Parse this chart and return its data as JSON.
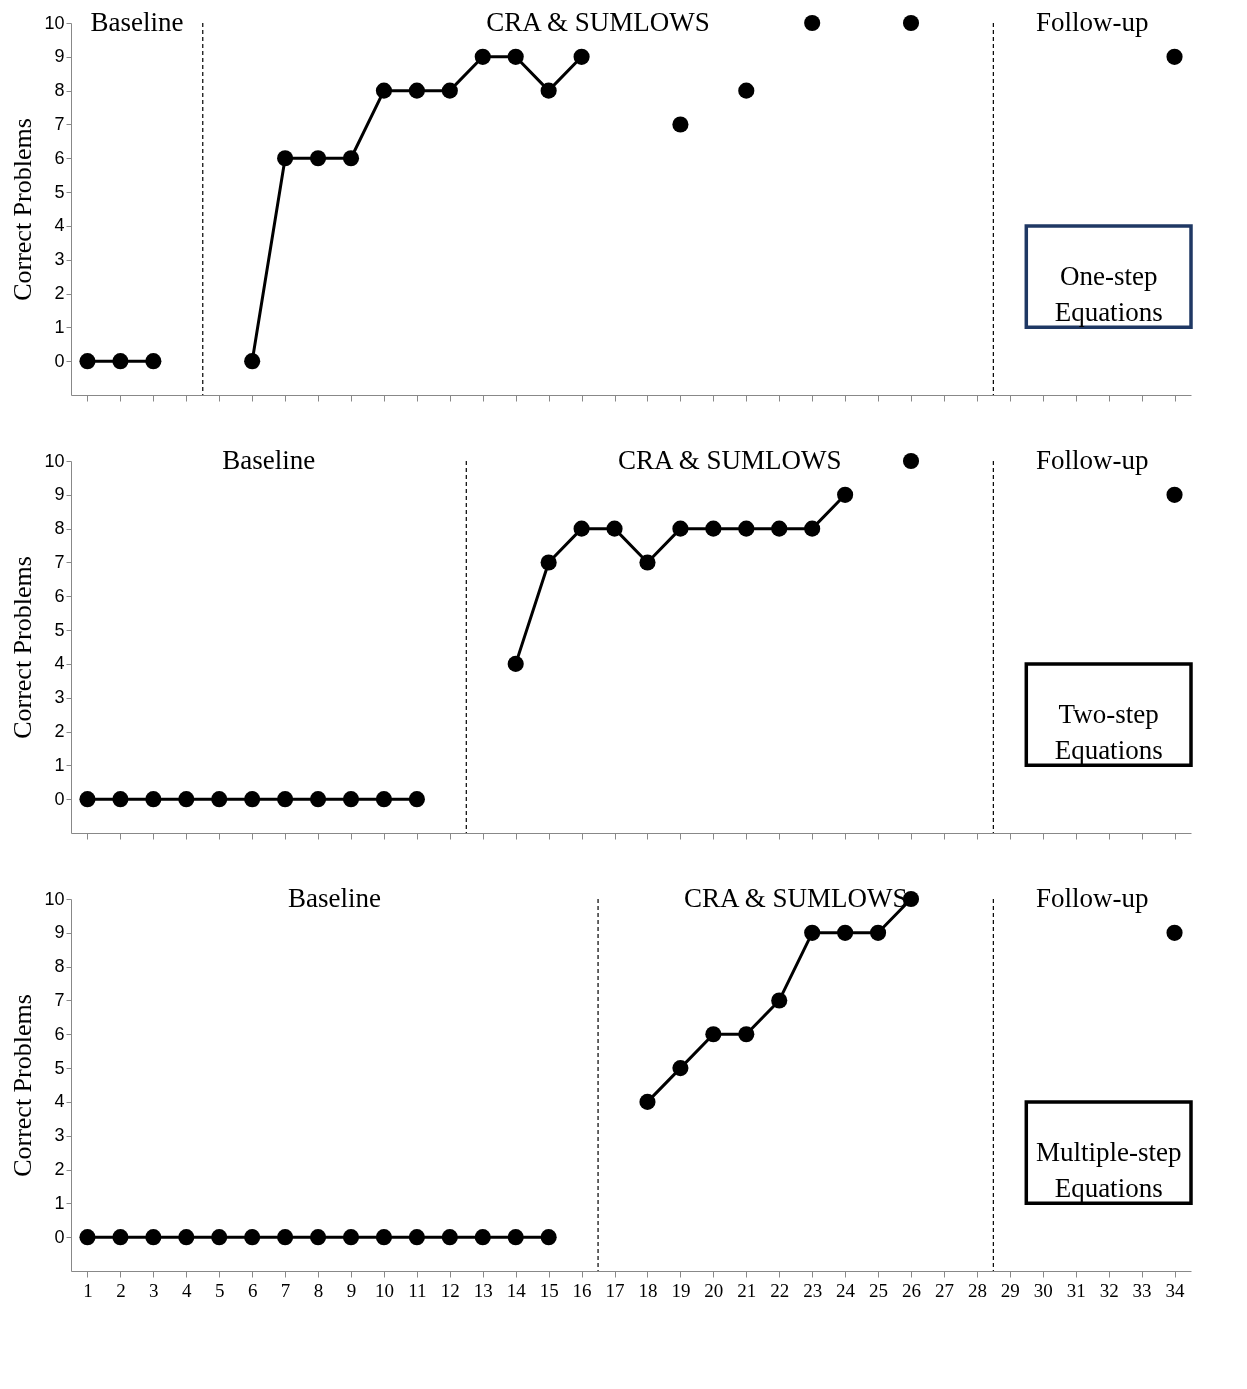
{
  "chart_data": [
    {
      "type": "line",
      "ylabel": "Correct Problems",
      "x": [
        1,
        2,
        3,
        4,
        5,
        6,
        7,
        8,
        9,
        10,
        11,
        12,
        13,
        14,
        15,
        16,
        17,
        18,
        19,
        20,
        21,
        22,
        23,
        24,
        25,
        26,
        27,
        28,
        29,
        30,
        31,
        32,
        33,
        34
      ],
      "series": [
        {
          "color": "#000000",
          "values": [
            0,
            0,
            0,
            null,
            null,
            0,
            6,
            6,
            6,
            8,
            8,
            8,
            9,
            9,
            8,
            9,
            null,
            null,
            7,
            null,
            8,
            null,
            10,
            null,
            null,
            10,
            null,
            null,
            null,
            null,
            null,
            null,
            null,
            9
          ]
        }
      ],
      "xlim": [
        0.5,
        34.5
      ],
      "xticks": [
        1,
        2,
        3,
        4,
        5,
        6,
        7,
        8,
        9,
        10,
        11,
        12,
        13,
        14,
        15,
        16,
        17,
        18,
        19,
        20,
        21,
        22,
        23,
        24,
        25,
        26,
        27,
        28,
        29,
        30,
        31,
        32,
        33,
        34
      ],
      "ylim": [
        -1,
        10
      ],
      "yticks": [
        0,
        1,
        2,
        3,
        4,
        5,
        6,
        7,
        8,
        9,
        10
      ],
      "tick_labels": "y",
      "marker": "circle",
      "line_style": "solid",
      "grid": false,
      "legend": false,
      "ref_lines": [
        {
          "axis": "x",
          "value": 4.5,
          "line_style": "dashed"
        },
        {
          "axis": "x",
          "value": 28.5,
          "line_style": "dashed"
        }
      ],
      "annotations": [
        "Baseline",
        "CRA & SUMLOWS",
        "Follow-up",
        "One-step Equations"
      ]
    },
    {
      "type": "line",
      "ylabel": "Correct Problems",
      "x": [
        1,
        2,
        3,
        4,
        5,
        6,
        7,
        8,
        9,
        10,
        11,
        12,
        13,
        14,
        15,
        16,
        17,
        18,
        19,
        20,
        21,
        22,
        23,
        24,
        25,
        26,
        27,
        28,
        29,
        30,
        31,
        32,
        33,
        34
      ],
      "series": [
        {
          "color": "#000000",
          "values": [
            0,
            0,
            0,
            0,
            0,
            0,
            0,
            0,
            0,
            0,
            0,
            null,
            null,
            4,
            7,
            8,
            8,
            7,
            8,
            8,
            8,
            8,
            8,
            9,
            null,
            10,
            null,
            null,
            null,
            null,
            null,
            null,
            null,
            9
          ]
        }
      ],
      "xlim": [
        0.5,
        34.5
      ],
      "xticks": [
        1,
        2,
        3,
        4,
        5,
        6,
        7,
        8,
        9,
        10,
        11,
        12,
        13,
        14,
        15,
        16,
        17,
        18,
        19,
        20,
        21,
        22,
        23,
        24,
        25,
        26,
        27,
        28,
        29,
        30,
        31,
        32,
        33,
        34
      ],
      "ylim": [
        -1,
        10
      ],
      "yticks": [
        0,
        1,
        2,
        3,
        4,
        5,
        6,
        7,
        8,
        9,
        10
      ],
      "tick_labels": "y",
      "marker": "circle",
      "line_style": "solid",
      "grid": false,
      "legend": false,
      "ref_lines": [
        {
          "axis": "x",
          "value": 12.5,
          "line_style": "dashed"
        },
        {
          "axis": "x",
          "value": 28.5,
          "line_style": "dashed"
        }
      ],
      "annotations": [
        "Baseline",
        "CRA & SUMLOWS",
        "Follow-up",
        "Two-step Equations"
      ]
    },
    {
      "type": "line",
      "ylabel": "Correct Problems",
      "x": [
        1,
        2,
        3,
        4,
        5,
        6,
        7,
        8,
        9,
        10,
        11,
        12,
        13,
        14,
        15,
        16,
        17,
        18,
        19,
        20,
        21,
        22,
        23,
        24,
        25,
        26,
        27,
        28,
        29,
        30,
        31,
        32,
        33,
        34
      ],
      "series": [
        {
          "color": "#000000",
          "values": [
            0,
            0,
            0,
            0,
            0,
            0,
            0,
            0,
            0,
            0,
            0,
            0,
            0,
            0,
            0,
            null,
            null,
            4,
            5,
            6,
            6,
            7,
            9,
            9,
            9,
            10,
            null,
            null,
            null,
            null,
            null,
            null,
            null,
            9
          ]
        }
      ],
      "xlim": [
        0.5,
        34.5
      ],
      "xticks": [
        1,
        2,
        3,
        4,
        5,
        6,
        7,
        8,
        9,
        10,
        11,
        12,
        13,
        14,
        15,
        16,
        17,
        18,
        19,
        20,
        21,
        22,
        23,
        24,
        25,
        26,
        27,
        28,
        29,
        30,
        31,
        32,
        33,
        34
      ],
      "ylim": [
        -1,
        10
      ],
      "yticks": [
        0,
        1,
        2,
        3,
        4,
        5,
        6,
        7,
        8,
        9,
        10
      ],
      "marker": "circle",
      "line_style": "solid",
      "grid": false,
      "legend": false,
      "ref_lines": [
        {
          "axis": "x",
          "value": 16.5,
          "line_style": "dashed"
        },
        {
          "axis": "x",
          "value": 28.5,
          "line_style": "dashed"
        }
      ],
      "annotations": [
        "Baseline",
        "CRA & SUMLOWS",
        "Follow-up",
        "Multiple-step Equations"
      ]
    }
  ]
}
